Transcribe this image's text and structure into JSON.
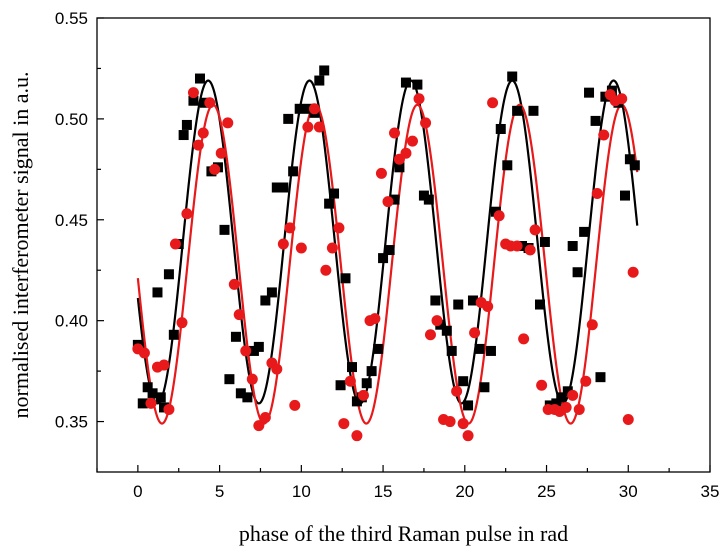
{
  "chart_data": {
    "type": "scatter",
    "title": "",
    "xlabel": "phase of the third Raman pulse in rad",
    "ylabel": "normalised interferometer signal in a.u.",
    "xlim": [
      -2.5,
      35
    ],
    "ylim": [
      0.325,
      0.55
    ],
    "xticks": [
      "0",
      "5",
      "10",
      "15",
      "20",
      "25",
      "30",
      "35"
    ],
    "yticks": [
      "0.35",
      "0.40",
      "0.45",
      "0.50",
      "0.55"
    ],
    "grid": false,
    "legend": "none",
    "colors": {
      "black": "#000000",
      "red": "#e8191a"
    },
    "series": [
      {
        "marker": "square",
        "color": "#000000",
        "points": [
          [
            0.0,
            0.388
          ],
          [
            0.3,
            0.359
          ],
          [
            0.6,
            0.367
          ],
          [
            0.9,
            0.364
          ],
          [
            1.2,
            0.414
          ],
          [
            1.4,
            0.362
          ],
          [
            1.6,
            0.357
          ],
          [
            1.9,
            0.423
          ],
          [
            2.2,
            0.393
          ],
          [
            2.5,
            0.438
          ],
          [
            2.8,
            0.492
          ],
          [
            3.0,
            0.497
          ],
          [
            3.4,
            0.509
          ],
          [
            3.8,
            0.52
          ],
          [
            4.1,
            0.508
          ],
          [
            4.5,
            0.474
          ],
          [
            4.9,
            0.476
          ],
          [
            5.3,
            0.445
          ],
          [
            5.6,
            0.371
          ],
          [
            6.0,
            0.392
          ],
          [
            6.3,
            0.364
          ],
          [
            6.7,
            0.362
          ],
          [
            7.1,
            0.385
          ],
          [
            7.4,
            0.387
          ],
          [
            7.8,
            0.41
          ],
          [
            8.2,
            0.414
          ],
          [
            8.5,
            0.466
          ],
          [
            8.9,
            0.466
          ],
          [
            9.2,
            0.5
          ],
          [
            9.5,
            0.474
          ],
          [
            9.9,
            0.505
          ],
          [
            10.5,
            0.505
          ],
          [
            10.8,
            0.503
          ],
          [
            11.1,
            0.519
          ],
          [
            11.4,
            0.524
          ],
          [
            11.7,
            0.458
          ],
          [
            12.0,
            0.463
          ],
          [
            12.4,
            0.368
          ],
          [
            12.7,
            0.421
          ],
          [
            13.1,
            0.377
          ],
          [
            13.4,
            0.36
          ],
          [
            13.7,
            0.362
          ],
          [
            14.0,
            0.369
          ],
          [
            14.3,
            0.375
          ],
          [
            14.7,
            0.386
          ],
          [
            15.0,
            0.431
          ],
          [
            15.4,
            0.435
          ],
          [
            15.7,
            0.46
          ],
          [
            16.0,
            0.476
          ],
          [
            16.4,
            0.518
          ],
          [
            17.1,
            0.517
          ],
          [
            17.5,
            0.462
          ],
          [
            17.8,
            0.46
          ],
          [
            18.2,
            0.41
          ],
          [
            18.5,
            0.398
          ],
          [
            18.9,
            0.395
          ],
          [
            19.2,
            0.385
          ],
          [
            19.6,
            0.408
          ],
          [
            19.9,
            0.37
          ],
          [
            20.2,
            0.358
          ],
          [
            20.5,
            0.41
          ],
          [
            20.9,
            0.386
          ],
          [
            21.2,
            0.367
          ],
          [
            21.6,
            0.385
          ],
          [
            21.9,
            0.454
          ],
          [
            22.2,
            0.495
          ],
          [
            22.6,
            0.477
          ],
          [
            22.9,
            0.521
          ],
          [
            23.2,
            0.504
          ],
          [
            23.5,
            0.437
          ],
          [
            23.9,
            0.436
          ],
          [
            24.2,
            0.504
          ],
          [
            24.6,
            0.408
          ],
          [
            24.9,
            0.439
          ],
          [
            25.2,
            0.358
          ],
          [
            25.6,
            0.359
          ],
          [
            25.9,
            0.362
          ],
          [
            26.3,
            0.365
          ],
          [
            26.6,
            0.437
          ],
          [
            26.9,
            0.424
          ],
          [
            27.3,
            0.444
          ],
          [
            27.6,
            0.513
          ],
          [
            28.0,
            0.499
          ],
          [
            28.3,
            0.372
          ],
          [
            28.6,
            0.511
          ],
          [
            29.0,
            0.514
          ],
          [
            29.4,
            0.508
          ],
          [
            29.8,
            0.462
          ],
          [
            30.1,
            0.48
          ],
          [
            30.4,
            0.477
          ]
        ],
        "fit": {
          "A": 0.08,
          "B": 0.439,
          "x0": 4.3,
          "period": 6.2
        }
      },
      {
        "marker": "circle",
        "color": "#e8191a",
        "points": [
          [
            0.0,
            0.386
          ],
          [
            0.4,
            0.384
          ],
          [
            0.8,
            0.359
          ],
          [
            1.2,
            0.377
          ],
          [
            1.6,
            0.378
          ],
          [
            1.9,
            0.356
          ],
          [
            2.3,
            0.438
          ],
          [
            2.7,
            0.399
          ],
          [
            3.0,
            0.453
          ],
          [
            3.4,
            0.513
          ],
          [
            3.7,
            0.487
          ],
          [
            4.0,
            0.493
          ],
          [
            4.4,
            0.508
          ],
          [
            4.7,
            0.475
          ],
          [
            5.1,
            0.483
          ],
          [
            5.5,
            0.498
          ],
          [
            5.9,
            0.418
          ],
          [
            6.2,
            0.403
          ],
          [
            6.6,
            0.385
          ],
          [
            7.0,
            0.371
          ],
          [
            7.4,
            0.348
          ],
          [
            7.8,
            0.352
          ],
          [
            8.2,
            0.379
          ],
          [
            8.5,
            0.376
          ],
          [
            8.9,
            0.438
          ],
          [
            9.3,
            0.446
          ],
          [
            9.6,
            0.358
          ],
          [
            10.0,
            0.436
          ],
          [
            10.4,
            0.496
          ],
          [
            10.8,
            0.505
          ],
          [
            11.1,
            0.496
          ],
          [
            11.5,
            0.425
          ],
          [
            11.9,
            0.436
          ],
          [
            12.3,
            0.446
          ],
          [
            12.6,
            0.349
          ],
          [
            13.0,
            0.37
          ],
          [
            13.4,
            0.343
          ],
          [
            13.8,
            0.363
          ],
          [
            14.2,
            0.4
          ],
          [
            14.5,
            0.401
          ],
          [
            14.9,
            0.473
          ],
          [
            15.3,
            0.459
          ],
          [
            15.7,
            0.493
          ],
          [
            16.0,
            0.48
          ],
          [
            16.4,
            0.483
          ],
          [
            16.8,
            0.489
          ],
          [
            17.2,
            0.51
          ],
          [
            17.6,
            0.498
          ],
          [
            17.9,
            0.393
          ],
          [
            18.3,
            0.4
          ],
          [
            18.7,
            0.351
          ],
          [
            19.1,
            0.35
          ],
          [
            19.5,
            0.365
          ],
          [
            19.9,
            0.349
          ],
          [
            20.2,
            0.343
          ],
          [
            20.6,
            0.394
          ],
          [
            21.0,
            0.409
          ],
          [
            21.4,
            0.407
          ],
          [
            21.7,
            0.508
          ],
          [
            22.1,
            0.452
          ],
          [
            22.5,
            0.438
          ],
          [
            22.8,
            0.437
          ],
          [
            23.2,
            0.437
          ],
          [
            23.6,
            0.391
          ],
          [
            24.0,
            0.435
          ],
          [
            24.3,
            0.445
          ],
          [
            24.7,
            0.368
          ],
          [
            25.1,
            0.356
          ],
          [
            25.5,
            0.356
          ],
          [
            25.8,
            0.355
          ],
          [
            26.2,
            0.357
          ],
          [
            26.6,
            0.363
          ],
          [
            27.0,
            0.356
          ],
          [
            27.4,
            0.37
          ],
          [
            27.8,
            0.398
          ],
          [
            28.1,
            0.463
          ],
          [
            28.5,
            0.492
          ],
          [
            28.9,
            0.512
          ],
          [
            29.2,
            0.509
          ],
          [
            29.6,
            0.51
          ],
          [
            30.0,
            0.351
          ],
          [
            30.3,
            0.424
          ]
        ],
        "fit": {
          "A": 0.079,
          "B": 0.428,
          "x0": 4.6,
          "period": 6.25
        }
      }
    ]
  }
}
